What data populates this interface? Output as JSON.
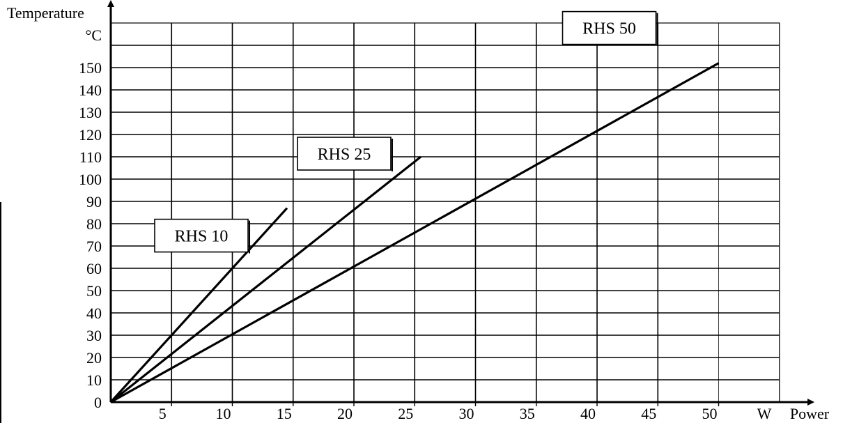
{
  "chart_data": {
    "type": "line",
    "ylabel": "Temperature",
    "yunit": "°C",
    "xlabel": "Power",
    "xunit": "W",
    "xlim": [
      0,
      55
    ],
    "ylim": [
      0,
      170
    ],
    "x_ticks": [
      5,
      10,
      15,
      20,
      25,
      30,
      35,
      40,
      45,
      50
    ],
    "y_ticks": [
      0,
      10,
      20,
      30,
      40,
      50,
      60,
      70,
      80,
      90,
      100,
      110,
      120,
      130,
      140,
      150
    ],
    "grid": true,
    "series": [
      {
        "name": "RHS 10",
        "x": [
          0,
          14.5
        ],
        "y": [
          0,
          87
        ]
      },
      {
        "name": "RHS 25",
        "x": [
          0,
          25.5
        ],
        "y": [
          0,
          110
        ]
      },
      {
        "name": "RHS 50",
        "x": [
          0,
          50
        ],
        "y": [
          0,
          152
        ]
      }
    ]
  }
}
